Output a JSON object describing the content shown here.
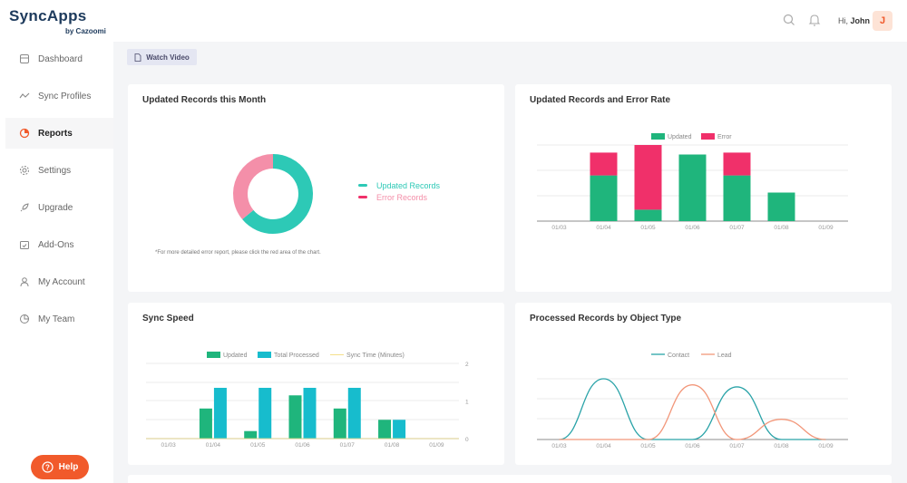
{
  "header": {
    "logo_main": "SyncApps",
    "logo_sub": "by Cazoomi",
    "greeting": "Hi,",
    "user_name": "John",
    "avatar_initial": "J"
  },
  "sidebar": {
    "items": [
      {
        "label": "Dashboard",
        "icon": "dashboard-icon"
      },
      {
        "label": "Sync Profiles",
        "icon": "trend-line-icon"
      },
      {
        "label": "Reports",
        "icon": "pie-chart-icon",
        "active": true
      },
      {
        "label": "Settings",
        "icon": "gear-icon"
      },
      {
        "label": "Upgrade",
        "icon": "rocket-icon"
      },
      {
        "label": "Add-Ons",
        "icon": "calendar-check-icon"
      },
      {
        "label": "My Account",
        "icon": "user-icon"
      },
      {
        "label": "My Team",
        "icon": "team-pie-icon"
      }
    ],
    "help_label": "Help"
  },
  "toolbar": {
    "watch_video": "Watch Video"
  },
  "colors": {
    "accent": "#f15a2b",
    "updated": "#1fb57c",
    "error": "#f0306a",
    "total": "#17bccd",
    "contact": "#2aa3a8",
    "lead": "#f2977a",
    "donut_updated": "#2dc9b6",
    "donut_error": "#f48fa9"
  },
  "cards": {
    "updated_month": {
      "title": "Updated Records this Month",
      "note": "*For more detailed error report, please click the red area of the chart."
    },
    "error_rate": {
      "title": "Updated Records and Error Rate"
    },
    "sync_speed": {
      "title": "Sync Speed"
    },
    "by_object": {
      "title": "Processed Records by Object Type"
    }
  },
  "chart_data": [
    {
      "type": "pie",
      "title": "Updated Records this Month",
      "labels": [
        "Updated Records",
        "Error Records"
      ],
      "values": [
        64,
        36
      ]
    },
    {
      "type": "bar",
      "title": "Updated Records and Error Rate",
      "categories": [
        "01/03",
        "01/04",
        "01/05",
        "01/06",
        "01/07",
        "01/08",
        "01/09"
      ],
      "series": [
        {
          "name": "Updated",
          "values": [
            0,
            1.2,
            0.3,
            1.75,
            1.2,
            0.75,
            0
          ]
        },
        {
          "name": "Error",
          "values": [
            0,
            0.6,
            1.7,
            0,
            0.6,
            0,
            0
          ]
        }
      ],
      "stacked": true,
      "ylim": [
        0,
        2
      ],
      "legend": "top-center"
    },
    {
      "type": "bar",
      "title": "Sync Speed",
      "categories": [
        "01/03",
        "01/04",
        "01/05",
        "01/06",
        "01/07",
        "01/08",
        "01/09"
      ],
      "series": [
        {
          "name": "Updated",
          "values": [
            0,
            0.8,
            0.2,
            1.15,
            0.8,
            0.5,
            0
          ]
        },
        {
          "name": "Total Processed",
          "values": [
            0,
            1.35,
            1.35,
            1.35,
            1.35,
            0.5,
            0
          ]
        },
        {
          "name": "Sync Time (Minutes)",
          "values": [
            0,
            0,
            0,
            0,
            0,
            0,
            0
          ]
        }
      ],
      "y_ticks": [
        "0",
        "1",
        "2"
      ],
      "ylim": [
        0,
        2
      ],
      "legend": "top-center"
    },
    {
      "type": "line",
      "title": "Processed Records by Object Type",
      "categories": [
        "01/03",
        "01/04",
        "01/05",
        "01/06",
        "01/07",
        "01/08",
        "01/09"
      ],
      "series": [
        {
          "name": "Contact",
          "values": [
            0,
            3,
            0,
            0,
            2.6,
            0,
            0
          ]
        },
        {
          "name": "Lead",
          "values": [
            0,
            0,
            0,
            2.7,
            0,
            1,
            0
          ]
        }
      ],
      "ylim": [
        0,
        3
      ],
      "legend": "top-center"
    }
  ]
}
